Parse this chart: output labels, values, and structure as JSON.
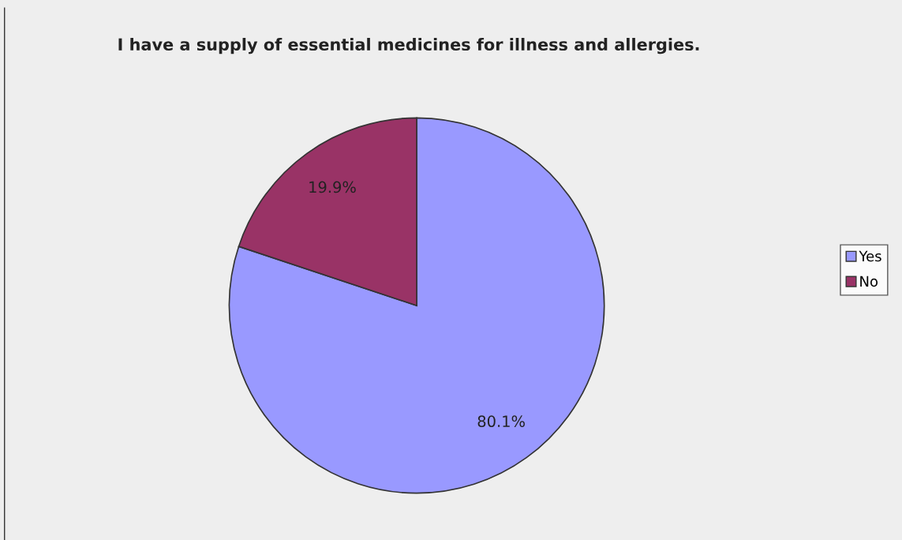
{
  "chart_data": {
    "type": "pie",
    "title": "I have a supply of essential medicines for illness and allergies.",
    "categories": [
      "Yes",
      "No"
    ],
    "values": [
      80.1,
      19.9
    ],
    "colors": [
      "#9999ff",
      "#993366"
    ],
    "value_labels": [
      "80.1%",
      "19.9%"
    ],
    "legend": "right"
  }
}
